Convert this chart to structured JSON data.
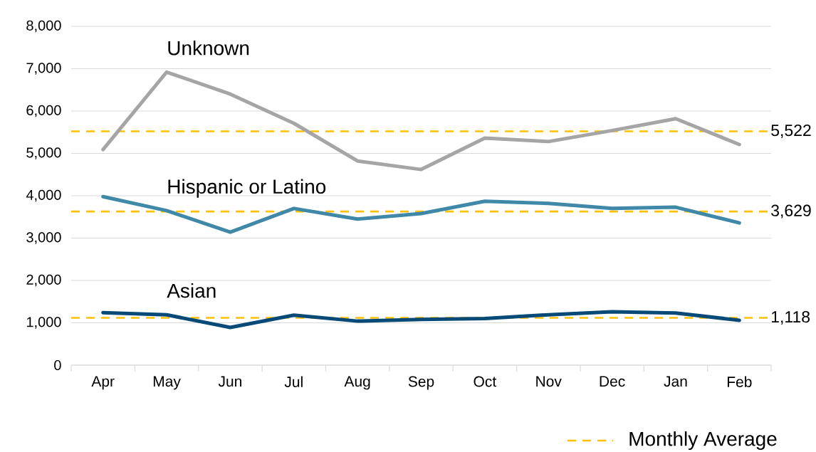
{
  "chart_data": {
    "type": "line",
    "categories": [
      "Apr",
      "May",
      "Jun",
      "Jul",
      "Aug",
      "Sep",
      "Oct",
      "Nov",
      "Dec",
      "Jan",
      "Feb"
    ],
    "series": [
      {
        "name": "Unknown",
        "color": "#a5a5a5",
        "values": [
          5090,
          6920,
          6400,
          5710,
          4820,
          4620,
          5360,
          5280,
          5540,
          5820,
          5210
        ]
      },
      {
        "name": "Hispanic or Latino",
        "color": "#3f88a8",
        "values": [
          3980,
          3650,
          3140,
          3700,
          3450,
          3580,
          3870,
          3820,
          3700,
          3730,
          3360
        ]
      },
      {
        "name": "Asian",
        "color": "#074a78",
        "values": [
          1240,
          1190,
          890,
          1180,
          1040,
          1080,
          1100,
          1190,
          1260,
          1230,
          1060
        ]
      }
    ],
    "ylim": [
      0,
      8000
    ],
    "yticks": [
      0,
      {
        "value": 1000,
        "label": "1,000"
      },
      {
        "value": 2000,
        "label": "2,000"
      },
      {
        "value": 3000,
        "label": "3,000"
      },
      {
        "value": 4000,
        "label": "4,000"
      },
      {
        "value": 5000,
        "label": "5,000"
      },
      {
        "value": 6000,
        "label": "6,000"
      },
      {
        "value": 7000,
        "label": "7,000"
      },
      {
        "value": 8000,
        "label": "8,000"
      }
    ],
    "grid": "y",
    "marker": "none",
    "ref_lines": [
      {
        "axis": "y",
        "value": 5522,
        "label": "5,522",
        "color": "#ffc000",
        "line_style": "dashed"
      },
      {
        "axis": "y",
        "value": 3629,
        "label": "3,629",
        "color": "#ffc000",
        "line_style": "dashed"
      },
      {
        "axis": "y",
        "value": 1118,
        "label": "1,118",
        "color": "#ffc000",
        "line_style": "dashed"
      }
    ],
    "annotations": [
      "Monthly Average"
    ]
  }
}
